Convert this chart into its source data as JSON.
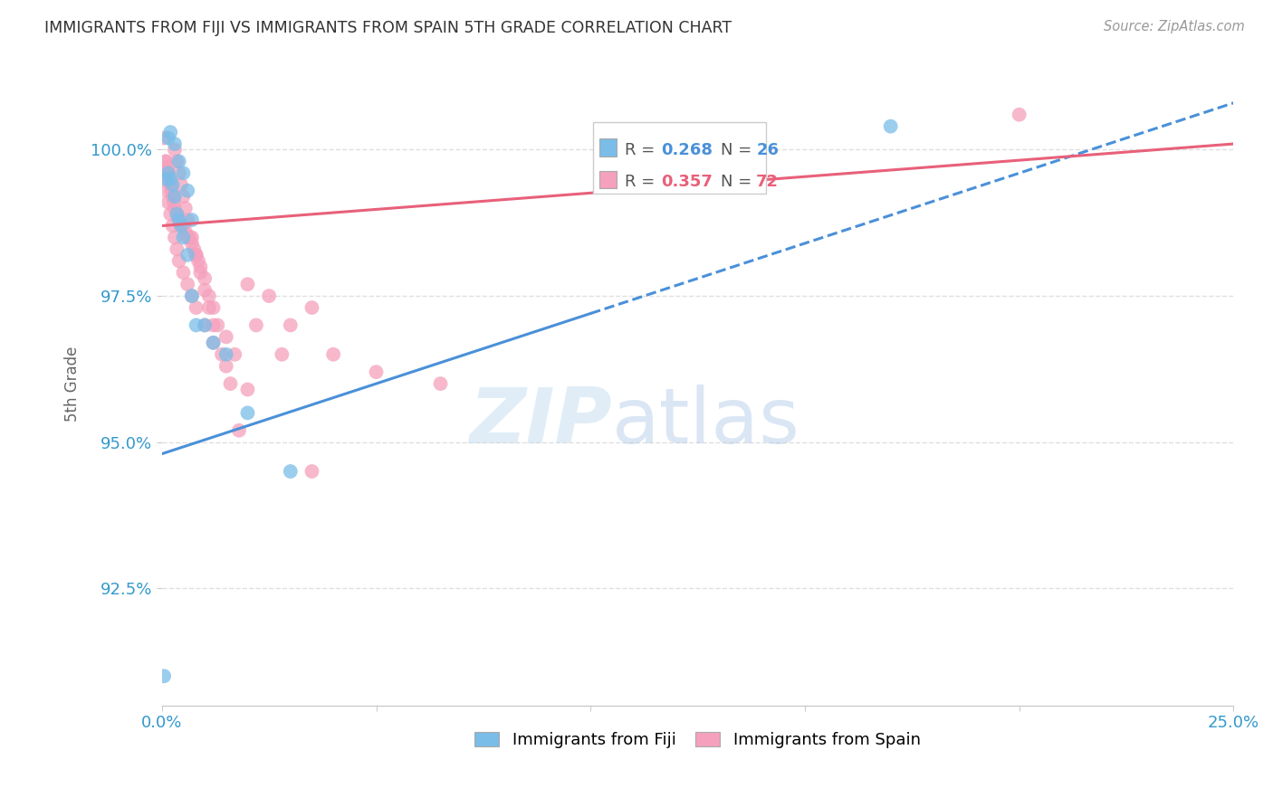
{
  "title": "IMMIGRANTS FROM FIJI VS IMMIGRANTS FROM SPAIN 5TH GRADE CORRELATION CHART",
  "source": "Source: ZipAtlas.com",
  "xlabel_label": "Immigrants from Fiji",
  "xlabel2_label": "Immigrants from Spain",
  "ylabel": "5th Grade",
  "xlim": [
    0.0,
    25.0
  ],
  "ylim": [
    90.5,
    101.5
  ],
  "xticks": [
    0.0,
    5.0,
    10.0,
    15.0,
    20.0,
    25.0
  ],
  "xticklabels": [
    "0.0%",
    "",
    "",
    "",
    "",
    "25.0%"
  ],
  "yticks": [
    92.5,
    95.0,
    97.5,
    100.0
  ],
  "yticklabels": [
    "92.5%",
    "95.0%",
    "97.5%",
    "100.0%"
  ],
  "fiji_color": "#7abde8",
  "spain_color": "#f5a0bc",
  "fiji_line_color": "#4a90d9",
  "spain_line_color": "#e8607a",
  "fiji_R": 0.268,
  "fiji_N": 26,
  "spain_R": 0.357,
  "spain_N": 72,
  "fiji_line_x0": 0.0,
  "fiji_line_y0": 94.8,
  "fiji_line_x1": 25.0,
  "fiji_line_y1": 100.8,
  "spain_line_x0": 0.0,
  "spain_line_y0": 98.7,
  "spain_line_x1": 25.0,
  "spain_line_y1": 100.1,
  "fiji_points_x": [
    0.05,
    0.1,
    0.15,
    0.2,
    0.25,
    0.3,
    0.35,
    0.4,
    0.45,
    0.5,
    0.6,
    0.7,
    0.8,
    1.0,
    1.2,
    1.5,
    2.0,
    3.0,
    0.15,
    0.2,
    0.3,
    0.4,
    0.5,
    0.6,
    0.7,
    17.0
  ],
  "fiji_points_y": [
    91.0,
    99.5,
    99.6,
    99.5,
    99.4,
    99.2,
    98.9,
    98.8,
    98.7,
    98.5,
    98.2,
    97.5,
    97.0,
    97.0,
    96.7,
    96.5,
    95.5,
    94.5,
    100.2,
    100.3,
    100.1,
    99.8,
    99.6,
    99.3,
    98.8,
    100.4
  ],
  "spain_points_x": [
    0.05,
    0.08,
    0.1,
    0.12,
    0.15,
    0.18,
    0.2,
    0.22,
    0.25,
    0.28,
    0.3,
    0.35,
    0.4,
    0.45,
    0.5,
    0.55,
    0.6,
    0.65,
    0.7,
    0.75,
    0.8,
    0.85,
    0.9,
    1.0,
    1.1,
    1.2,
    1.3,
    1.5,
    1.7,
    2.0,
    2.5,
    3.0,
    3.5,
    4.0,
    5.0,
    6.5,
    0.05,
    0.1,
    0.15,
    0.2,
    0.25,
    0.3,
    0.35,
    0.4,
    0.5,
    0.6,
    0.7,
    0.8,
    1.0,
    1.2,
    1.5,
    2.0,
    1.8,
    3.5,
    0.3,
    0.35,
    0.4,
    0.45,
    0.5,
    0.55,
    0.6,
    0.7,
    0.8,
    0.9,
    1.0,
    1.1,
    1.2,
    1.4,
    1.6,
    2.2,
    2.8,
    20.0
  ],
  "spain_points_y": [
    100.2,
    99.8,
    99.8,
    99.7,
    99.6,
    99.5,
    99.4,
    99.3,
    99.2,
    99.1,
    99.0,
    98.9,
    98.8,
    98.7,
    98.7,
    98.6,
    98.5,
    98.5,
    98.4,
    98.3,
    98.2,
    98.1,
    98.0,
    97.8,
    97.5,
    97.3,
    97.0,
    96.8,
    96.5,
    97.7,
    97.5,
    97.0,
    97.3,
    96.5,
    96.2,
    96.0,
    99.5,
    99.3,
    99.1,
    98.9,
    98.7,
    98.5,
    98.3,
    98.1,
    97.9,
    97.7,
    97.5,
    97.3,
    97.0,
    96.7,
    96.3,
    95.9,
    95.2,
    94.5,
    100.0,
    99.8,
    99.6,
    99.4,
    99.2,
    99.0,
    98.8,
    98.5,
    98.2,
    97.9,
    97.6,
    97.3,
    97.0,
    96.5,
    96.0,
    97.0,
    96.5,
    100.6
  ],
  "watermark_zip": "ZIP",
  "watermark_atlas": "atlas",
  "background_color": "#ffffff",
  "grid_color": "#e0e0e0"
}
